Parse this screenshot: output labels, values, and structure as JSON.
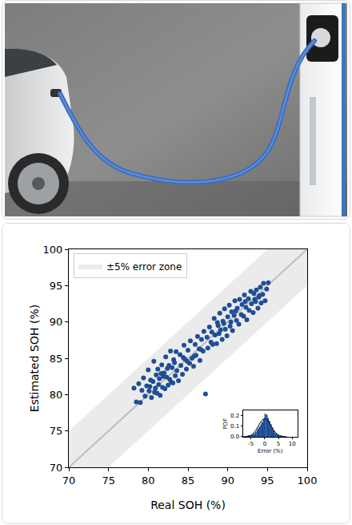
{
  "chart_data": [
    {
      "type": "scatter",
      "xlabel": "Real SOH (%)",
      "ylabel": "Estimated SOH (%)",
      "xlim": [
        70,
        100
      ],
      "ylim": [
        70,
        100
      ],
      "xticks": [
        70,
        75,
        80,
        85,
        90,
        95,
        100
      ],
      "yticks": [
        70,
        75,
        80,
        85,
        90,
        95,
        100
      ],
      "grid": false,
      "legend": "upper left",
      "series": [
        {
          "type": "band",
          "name": "±5% error zone",
          "color": "#ebebeb",
          "x": [
            70,
            100
          ],
          "y": [
            70,
            100
          ],
          "error": 5
        },
        {
          "type": "line",
          "color": "#bdbdbd",
          "line_style": "solid",
          "x": [
            70,
            100
          ],
          "y": [
            70,
            100
          ]
        },
        {
          "type": "scatter",
          "color": "#1f4e96",
          "marker": "circle",
          "x": [
            78.2,
            78.5,
            78.8,
            79.0,
            79.2,
            79.4,
            79.6,
            79.8,
            80.0,
            80.1,
            80.3,
            80.4,
            80.6,
            80.7,
            80.9,
            81.0,
            81.1,
            81.2,
            81.3,
            81.5,
            81.6,
            81.7,
            81.8,
            82.0,
            82.1,
            82.2,
            82.3,
            82.5,
            82.6,
            82.7,
            82.8,
            83.0,
            83.1,
            83.2,
            83.4,
            83.5,
            83.6,
            83.8,
            84.0,
            84.1,
            84.3,
            84.5,
            84.6,
            84.8,
            85.0,
            85.2,
            85.3,
            85.5,
            85.7,
            85.9,
            86.0,
            86.2,
            86.4,
            86.5,
            86.7,
            86.9,
            87.0,
            87.2,
            87.4,
            87.5,
            87.7,
            87.9,
            88.0,
            88.1,
            88.3,
            88.4,
            88.6,
            88.7,
            88.9,
            89.0,
            89.1,
            89.3,
            89.4,
            89.6,
            89.7,
            89.9,
            90.0,
            90.2,
            90.3,
            90.5,
            90.6,
            90.8,
            90.9,
            91.1,
            91.2,
            91.4,
            91.5,
            91.7,
            91.8,
            92.0,
            92.1,
            92.3,
            92.4,
            92.6,
            92.7,
            92.9,
            93.0,
            93.2,
            93.3,
            93.5,
            93.6,
            93.8,
            93.9,
            94.1,
            94.2,
            94.4,
            94.5,
            94.7,
            94.9,
            95.1,
            80.2,
            81.4,
            82.4,
            83.3,
            81.9,
            80.8,
            82.9,
            84.4,
            89.5,
            91.0,
            92.2,
            93.4,
            94.0,
            90.4,
            88.8,
            86.6,
            85.8,
            84.9
          ],
          "y": [
            80.9,
            79.0,
            81.5,
            78.9,
            80.6,
            82.3,
            79.8,
            81.2,
            83.4,
            80.5,
            82.0,
            79.6,
            81.8,
            84.6,
            80.9,
            82.7,
            80.2,
            83.5,
            81.4,
            79.9,
            82.9,
            84.1,
            81.0,
            83.0,
            80.8,
            85.2,
            82.4,
            81.3,
            84.0,
            82.1,
            86.0,
            83.7,
            81.6,
            84.8,
            82.6,
            85.9,
            83.3,
            81.9,
            85.5,
            84.0,
            82.8,
            86.8,
            84.9,
            83.5,
            86.1,
            84.3,
            87.4,
            85.0,
            83.9,
            86.9,
            85.4,
            88.0,
            86.3,
            84.7,
            87.6,
            86.0,
            88.7,
            80.1,
            87.9,
            86.4,
            89.3,
            87.2,
            88.6,
            86.9,
            90.5,
            88.2,
            87.0,
            89.9,
            88.4,
            91.2,
            88.9,
            87.6,
            90.1,
            91.8,
            89.0,
            88.1,
            90.7,
            92.3,
            89.4,
            91.4,
            88.8,
            90.9,
            92.9,
            90.2,
            91.9,
            89.7,
            93.1,
            91.0,
            92.4,
            90.8,
            93.7,
            92.0,
            90.3,
            93.2,
            91.6,
            94.2,
            92.5,
            91.3,
            93.9,
            92.8,
            94.4,
            91.9,
            93.4,
            94.8,
            92.6,
            93.8,
            95.3,
            92.9,
            94.5,
            95.4,
            81.1,
            82.2,
            83.6,
            84.4,
            82.5,
            80.3,
            81.7,
            85.1,
            89.8,
            91.5,
            92.8,
            93.1,
            93.6,
            90.0,
            89.5,
            86.2,
            85.3,
            84.6
          ]
        }
      ]
    },
    {
      "type": "histogram",
      "xlabel": "Error (%)",
      "ylabel": "PDF",
      "xlim": [
        -8,
        12
      ],
      "ylim": [
        0,
        0.25
      ],
      "xticks": [
        -5,
        0,
        5,
        10
      ],
      "yticks": [
        {
          "value": 0,
          "label": "0.0"
        },
        {
          "value": 0.1,
          "label": "0.1"
        },
        {
          "value": 0.2,
          "label": "0.2"
        }
      ],
      "grid": false,
      "color": "#1f4e96",
      "bins": [
        -6,
        -5.5,
        -5,
        -4.5,
        -4,
        -3.5,
        -3,
        -2.5,
        -2,
        -1.5,
        -1,
        -0.5,
        0,
        0.5,
        1,
        1.5,
        2,
        2.5,
        3,
        3.5,
        4,
        4.5,
        5,
        5.5,
        6,
        6.5,
        7
      ],
      "counts": [
        0.005,
        0.01,
        0.015,
        0.02,
        0.03,
        0.045,
        0.06,
        0.08,
        0.1,
        0.12,
        0.14,
        0.17,
        0.22,
        0.21,
        0.18,
        0.15,
        0.12,
        0.09,
        0.06,
        0.04,
        0.03,
        0.02,
        0.01,
        0.008,
        0.004,
        0.002
      ],
      "series": [
        {
          "type": "line",
          "color": "#000000",
          "line_style": "solid",
          "x": [
            -8,
            -7,
            -6,
            -5,
            -4,
            -3,
            -2,
            -1,
            0,
            1,
            2,
            3,
            4,
            5,
            6,
            7,
            8
          ],
          "y": [
            0.0004,
            0.002,
            0.006,
            0.016,
            0.038,
            0.074,
            0.119,
            0.157,
            0.173,
            0.157,
            0.119,
            0.074,
            0.038,
            0.016,
            0.006,
            0.002,
            0.0004
          ]
        }
      ]
    }
  ]
}
